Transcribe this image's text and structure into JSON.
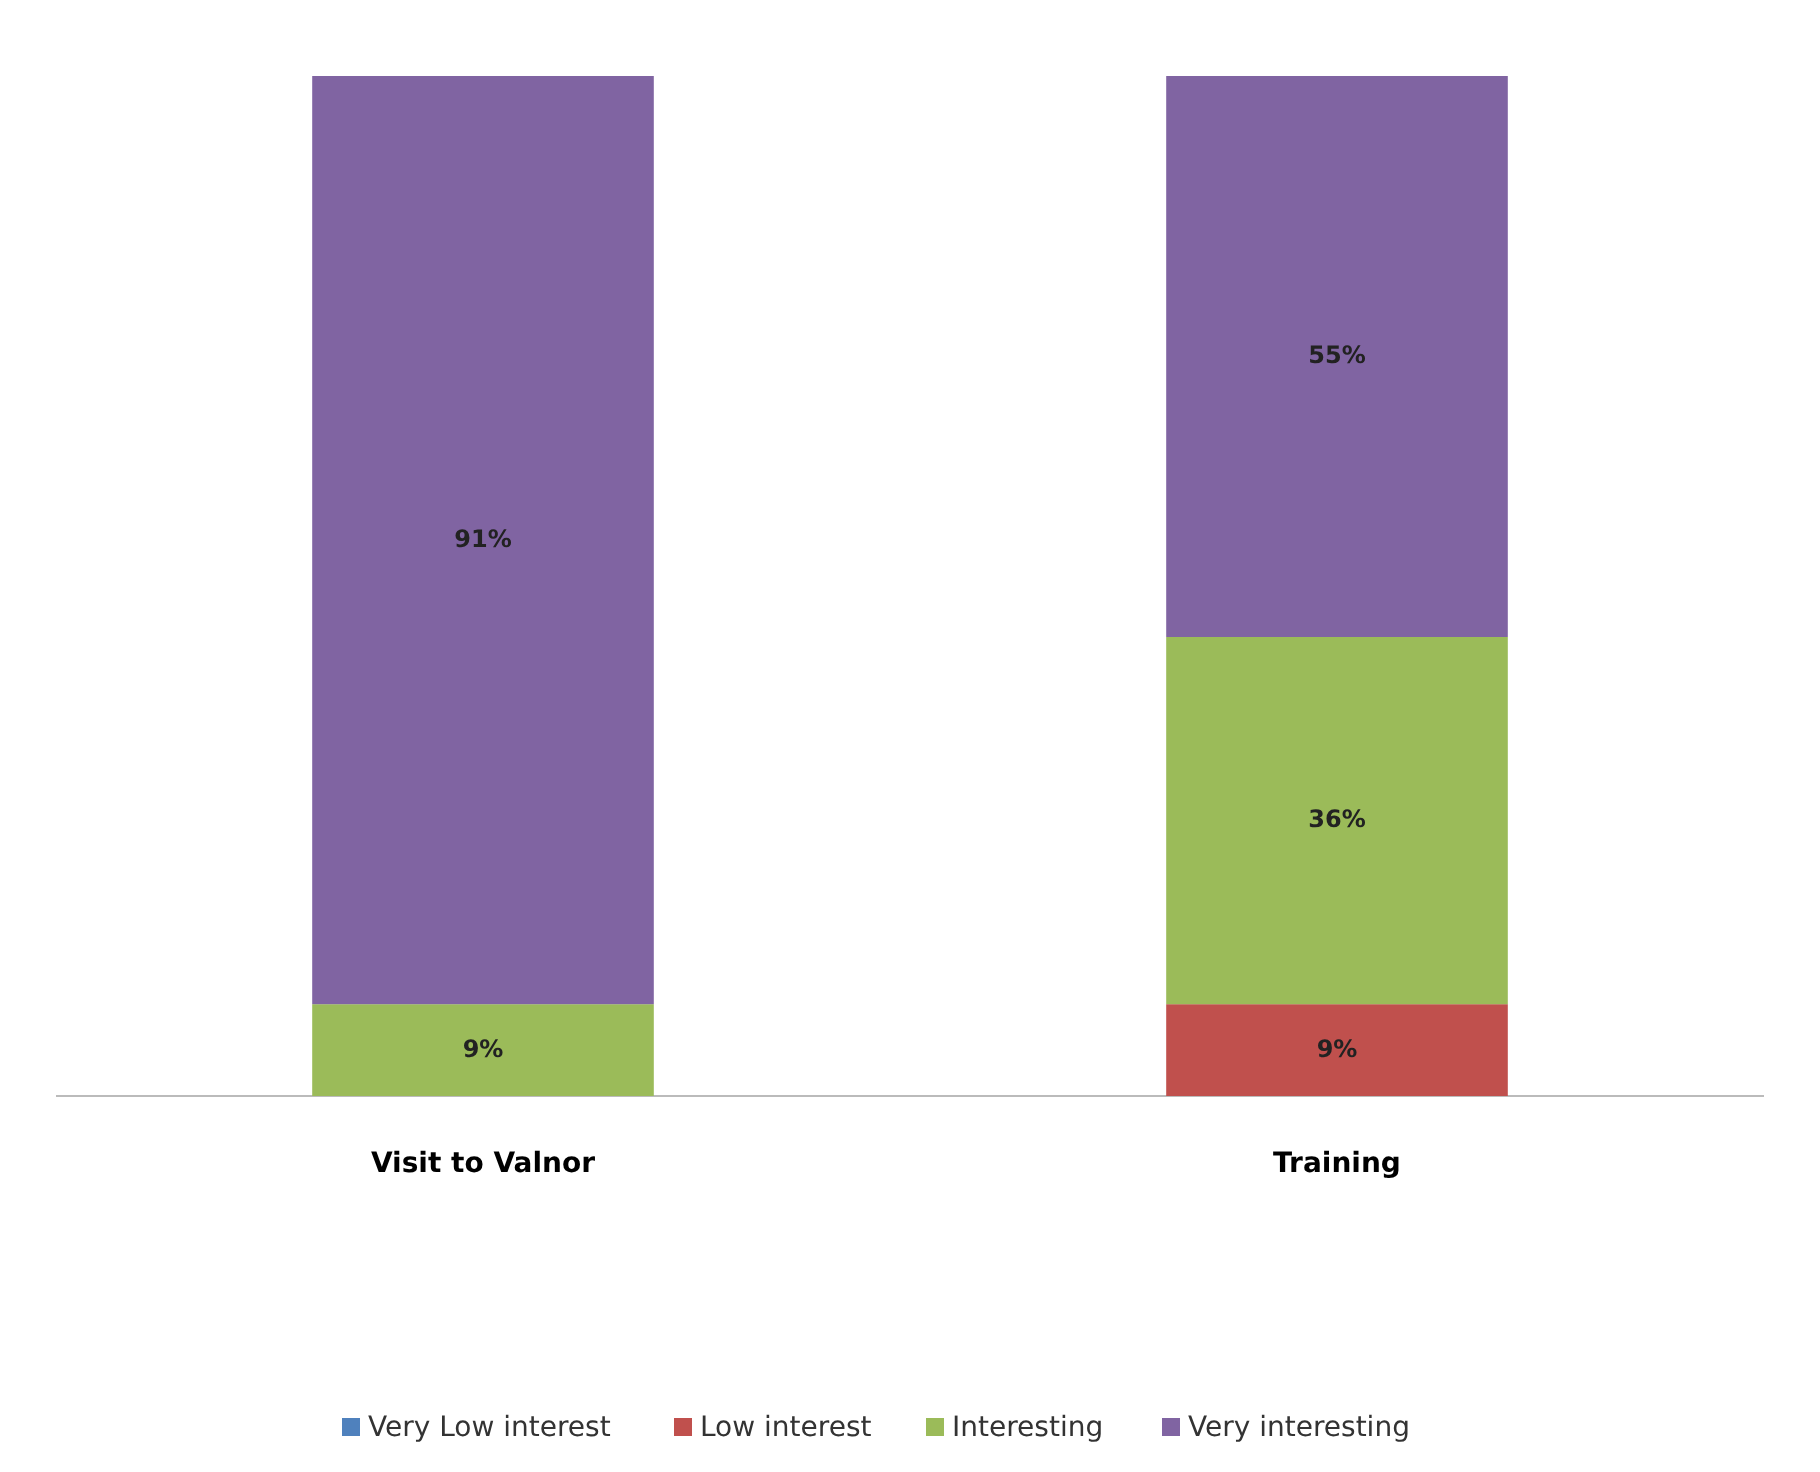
{
  "chart_data": {
    "type": "bar",
    "stacked": true,
    "categories": [
      "Visit to Valnor",
      "Training"
    ],
    "series": [
      {
        "name": "Very Low interest",
        "color": "#4f81bd",
        "values": [
          0,
          0
        ],
        "value_labels": [
          null,
          null
        ]
      },
      {
        "name": "Low interest",
        "color": "#c0504d",
        "values": [
          0,
          9
        ],
        "value_labels": [
          null,
          "9%"
        ]
      },
      {
        "name": "Interesting",
        "color": "#9bbb59",
        "values": [
          9,
          36
        ],
        "value_labels": [
          "9%",
          "36%"
        ]
      },
      {
        "name": "Very interesting",
        "color": "#8064a2",
        "values": [
          91,
          55
        ],
        "value_labels": [
          "91%",
          "55%"
        ]
      }
    ],
    "legend": "bottom"
  }
}
